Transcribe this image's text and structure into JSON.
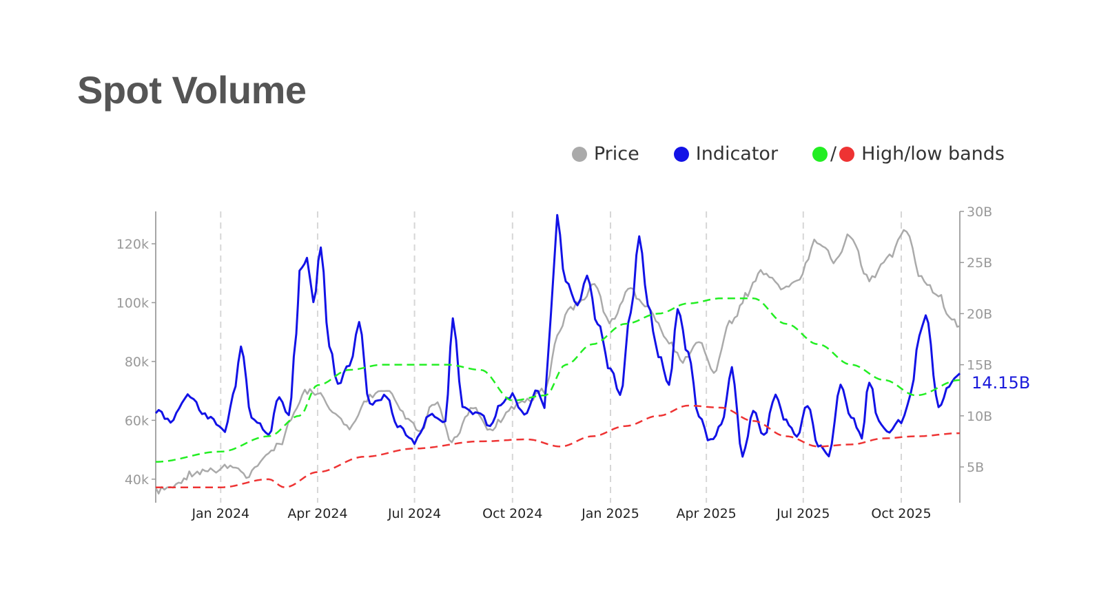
{
  "title": "Spot Volume",
  "legend": [
    {
      "label": "Price",
      "color": "#aaaaaa",
      "icon": "gray-dot-icon"
    },
    {
      "label": "Indicator",
      "color": "#1212e6",
      "icon": "blue-dot-icon"
    },
    {
      "label": "High/low bands",
      "colors": [
        "#22ee22",
        "#ee3333"
      ],
      "separator": "/",
      "icon": "green-red-dot-icon"
    }
  ],
  "chart_data": {
    "type": "line",
    "title": "Spot Volume",
    "x_range": [
      "2023-11-01",
      "2025-11-25"
    ],
    "x_ticks": [
      {
        "date": "2024-01-01",
        "label": "Jan 2024"
      },
      {
        "date": "2024-04-01",
        "label": "Apr 2024"
      },
      {
        "date": "2024-07-01",
        "label": "Jul 2024"
      },
      {
        "date": "2024-10-01",
        "label": "Oct 2024"
      },
      {
        "date": "2025-01-01",
        "label": "Jan 2025"
      },
      {
        "date": "2025-04-01",
        "label": "Apr 2025"
      },
      {
        "date": "2025-07-01",
        "label": "Jul 2025"
      },
      {
        "date": "2025-10-01",
        "label": "Oct 2025"
      }
    ],
    "y_left": {
      "ticks": [
        40000,
        60000,
        80000,
        100000,
        120000
      ],
      "tick_labels": [
        "40k",
        "60k",
        "80k",
        "100k",
        "120k"
      ],
      "range": [
        32000,
        131000
      ]
    },
    "y_right": {
      "ticks": [
        5,
        10,
        15,
        20,
        25,
        30
      ],
      "tick_labels": [
        "5B",
        "10B",
        "15B",
        "20B",
        "25B",
        "30B"
      ],
      "range": [
        1.5,
        30
      ]
    },
    "grid": "vertical dashed at x ticks",
    "last_value_label": "14.15B",
    "series": [
      {
        "name": "Price",
        "axis": "left",
        "color": "#aaaaaa",
        "dash": "solid",
        "points": [
          [
            "2023-11-01",
            36000
          ],
          [
            "2023-11-20",
            37500
          ],
          [
            "2023-12-05",
            42000
          ],
          [
            "2023-12-25",
            43000
          ],
          [
            "2024-01-10",
            45000
          ],
          [
            "2024-01-25",
            41000
          ],
          [
            "2024-02-10",
            47000
          ],
          [
            "2024-02-25",
            52000
          ],
          [
            "2024-03-10",
            62000
          ],
          [
            "2024-03-20",
            70000
          ],
          [
            "2024-04-01",
            69000
          ],
          [
            "2024-04-15",
            63000
          ],
          [
            "2024-05-01",
            58000
          ],
          [
            "2024-05-20",
            68000
          ],
          [
            "2024-06-05",
            70000
          ],
          [
            "2024-06-25",
            61000
          ],
          [
            "2024-07-05",
            56000
          ],
          [
            "2024-07-20",
            66000
          ],
          [
            "2024-08-05",
            53000
          ],
          [
            "2024-08-25",
            64000
          ],
          [
            "2024-09-10",
            57000
          ],
          [
            "2024-09-30",
            64000
          ],
          [
            "2024-10-15",
            67000
          ],
          [
            "2024-10-31",
            70000
          ],
          [
            "2024-11-12",
            88000
          ],
          [
            "2024-11-22",
            98000
          ],
          [
            "2024-12-05",
            100000
          ],
          [
            "2024-12-17",
            106000
          ],
          [
            "2024-12-31",
            93000
          ],
          [
            "2025-01-20",
            104000
          ],
          [
            "2025-02-05",
            98000
          ],
          [
            "2025-02-25",
            86000
          ],
          [
            "2025-03-10",
            80000
          ],
          [
            "2025-03-25",
            87000
          ],
          [
            "2025-04-08",
            77000
          ],
          [
            "2025-04-25",
            94000
          ],
          [
            "2025-05-10",
            103000
          ],
          [
            "2025-05-22",
            111000
          ],
          [
            "2025-06-10",
            105000
          ],
          [
            "2025-06-25",
            107000
          ],
          [
            "2025-07-14",
            121000
          ],
          [
            "2025-08-01",
            114000
          ],
          [
            "2025-08-14",
            123000
          ],
          [
            "2025-09-01",
            108000
          ],
          [
            "2025-09-20",
            116000
          ],
          [
            "2025-10-06",
            125000
          ],
          [
            "2025-10-20",
            108000
          ],
          [
            "2025-11-05",
            103000
          ],
          [
            "2025-11-15",
            95000
          ],
          [
            "2025-11-25",
            92000
          ]
        ]
      },
      {
        "name": "Indicator",
        "axis": "right",
        "color": "#1212e6",
        "dash": "solid",
        "points": [
          [
            "2023-11-01",
            10.5
          ],
          [
            "2023-11-15",
            9.5
          ],
          [
            "2023-12-01",
            12
          ],
          [
            "2023-12-20",
            10
          ],
          [
            "2024-01-05",
            8.5
          ],
          [
            "2024-01-15",
            13
          ],
          [
            "2024-01-20",
            17
          ],
          [
            "2024-01-30",
            10
          ],
          [
            "2024-02-15",
            8
          ],
          [
            "2024-02-25",
            12
          ],
          [
            "2024-03-05",
            10
          ],
          [
            "2024-03-12",
            18
          ],
          [
            "2024-03-15",
            24
          ],
          [
            "2024-03-22",
            25.5
          ],
          [
            "2024-03-28",
            21
          ],
          [
            "2024-04-04",
            26.5
          ],
          [
            "2024-04-12",
            17
          ],
          [
            "2024-04-20",
            13
          ],
          [
            "2024-05-01",
            15
          ],
          [
            "2024-05-10",
            19
          ],
          [
            "2024-05-20",
            11
          ],
          [
            "2024-06-05",
            12
          ],
          [
            "2024-06-15",
            9
          ],
          [
            "2024-07-01",
            7.5
          ],
          [
            "2024-07-15",
            10
          ],
          [
            "2024-07-30",
            9.5
          ],
          [
            "2024-08-06",
            19.5
          ],
          [
            "2024-08-15",
            11
          ],
          [
            "2024-09-01",
            10
          ],
          [
            "2024-09-10",
            9
          ],
          [
            "2024-09-20",
            11
          ],
          [
            "2024-10-01",
            12
          ],
          [
            "2024-10-12",
            10
          ],
          [
            "2024-10-25",
            12.5
          ],
          [
            "2024-10-31",
            11
          ],
          [
            "2024-11-06",
            20
          ],
          [
            "2024-11-12",
            29.5
          ],
          [
            "2024-11-20",
            23
          ],
          [
            "2024-12-01",
            21
          ],
          [
            "2024-12-10",
            23.5
          ],
          [
            "2024-12-20",
            19
          ],
          [
            "2025-01-01",
            14.5
          ],
          [
            "2025-01-10",
            12
          ],
          [
            "2025-01-20",
            20
          ],
          [
            "2025-01-28",
            27.5
          ],
          [
            "2025-02-05",
            21
          ],
          [
            "2025-02-15",
            16
          ],
          [
            "2025-02-25",
            13
          ],
          [
            "2025-03-05",
            20.5
          ],
          [
            "2025-03-15",
            16
          ],
          [
            "2025-03-25",
            10
          ],
          [
            "2025-04-05",
            7.5
          ],
          [
            "2025-04-15",
            9
          ],
          [
            "2025-04-25",
            14.5
          ],
          [
            "2025-05-05",
            6
          ],
          [
            "2025-05-15",
            10.5
          ],
          [
            "2025-05-25",
            8
          ],
          [
            "2025-06-05",
            12
          ],
          [
            "2025-06-15",
            9.5
          ],
          [
            "2025-06-25",
            8
          ],
          [
            "2025-07-05",
            11
          ],
          [
            "2025-07-15",
            7
          ],
          [
            "2025-07-25",
            6
          ],
          [
            "2025-08-05",
            13
          ],
          [
            "2025-08-15",
            10
          ],
          [
            "2025-08-25",
            8
          ],
          [
            "2025-09-01",
            13.5
          ],
          [
            "2025-09-10",
            9.5
          ],
          [
            "2025-09-20",
            8.5
          ],
          [
            "2025-10-01",
            9.5
          ],
          [
            "2025-10-10",
            12
          ],
          [
            "2025-10-18",
            18
          ],
          [
            "2025-10-24",
            20
          ],
          [
            "2025-11-05",
            11
          ],
          [
            "2025-11-15",
            13
          ],
          [
            "2025-11-25",
            14.15
          ]
        ]
      },
      {
        "name": "High/low bands",
        "axis": "right",
        "color": "#22ee22",
        "dash": "dashed",
        "points": [
          [
            "2023-11-01",
            5.5
          ],
          [
            "2024-01-01",
            6.5
          ],
          [
            "2024-02-15",
            8
          ],
          [
            "2024-03-15",
            10
          ],
          [
            "2024-04-01",
            13
          ],
          [
            "2024-05-01",
            14.5
          ],
          [
            "2024-06-01",
            15
          ],
          [
            "2024-08-01",
            15
          ],
          [
            "2024-09-01",
            14.5
          ],
          [
            "2024-10-01",
            11.5
          ],
          [
            "2024-11-01",
            12
          ],
          [
            "2024-11-20",
            15
          ],
          [
            "2024-12-15",
            17
          ],
          [
            "2025-01-15",
            19
          ],
          [
            "2025-02-15",
            20
          ],
          [
            "2025-03-15",
            21
          ],
          [
            "2025-04-15",
            21.5
          ],
          [
            "2025-05-15",
            21.5
          ],
          [
            "2025-06-15",
            19
          ],
          [
            "2025-07-15",
            17
          ],
          [
            "2025-08-15",
            15
          ],
          [
            "2025-09-15",
            13.5
          ],
          [
            "2025-10-15",
            12
          ],
          [
            "2025-11-25",
            13.5
          ]
        ]
      },
      {
        "name": "High/low bands",
        "axis": "right",
        "color": "#ee3333",
        "dash": "dashed",
        "points": [
          [
            "2023-11-01",
            3
          ],
          [
            "2024-01-01",
            3
          ],
          [
            "2024-02-15",
            3.8
          ],
          [
            "2024-03-01",
            3
          ],
          [
            "2024-04-01",
            4.5
          ],
          [
            "2024-05-15",
            6
          ],
          [
            "2024-07-01",
            6.8
          ],
          [
            "2024-09-01",
            7.5
          ],
          [
            "2024-10-15",
            7.7
          ],
          [
            "2024-11-15",
            7
          ],
          [
            "2024-12-15",
            8
          ],
          [
            "2025-01-15",
            9
          ],
          [
            "2025-02-15",
            10
          ],
          [
            "2025-03-15",
            11
          ],
          [
            "2025-04-15",
            10.8
          ],
          [
            "2025-05-15",
            9.5
          ],
          [
            "2025-06-15",
            8
          ],
          [
            "2025-07-15",
            7
          ],
          [
            "2025-08-15",
            7.2
          ],
          [
            "2025-09-15",
            7.8
          ],
          [
            "2025-10-15",
            8
          ],
          [
            "2025-11-25",
            8.3
          ]
        ]
      }
    ]
  }
}
